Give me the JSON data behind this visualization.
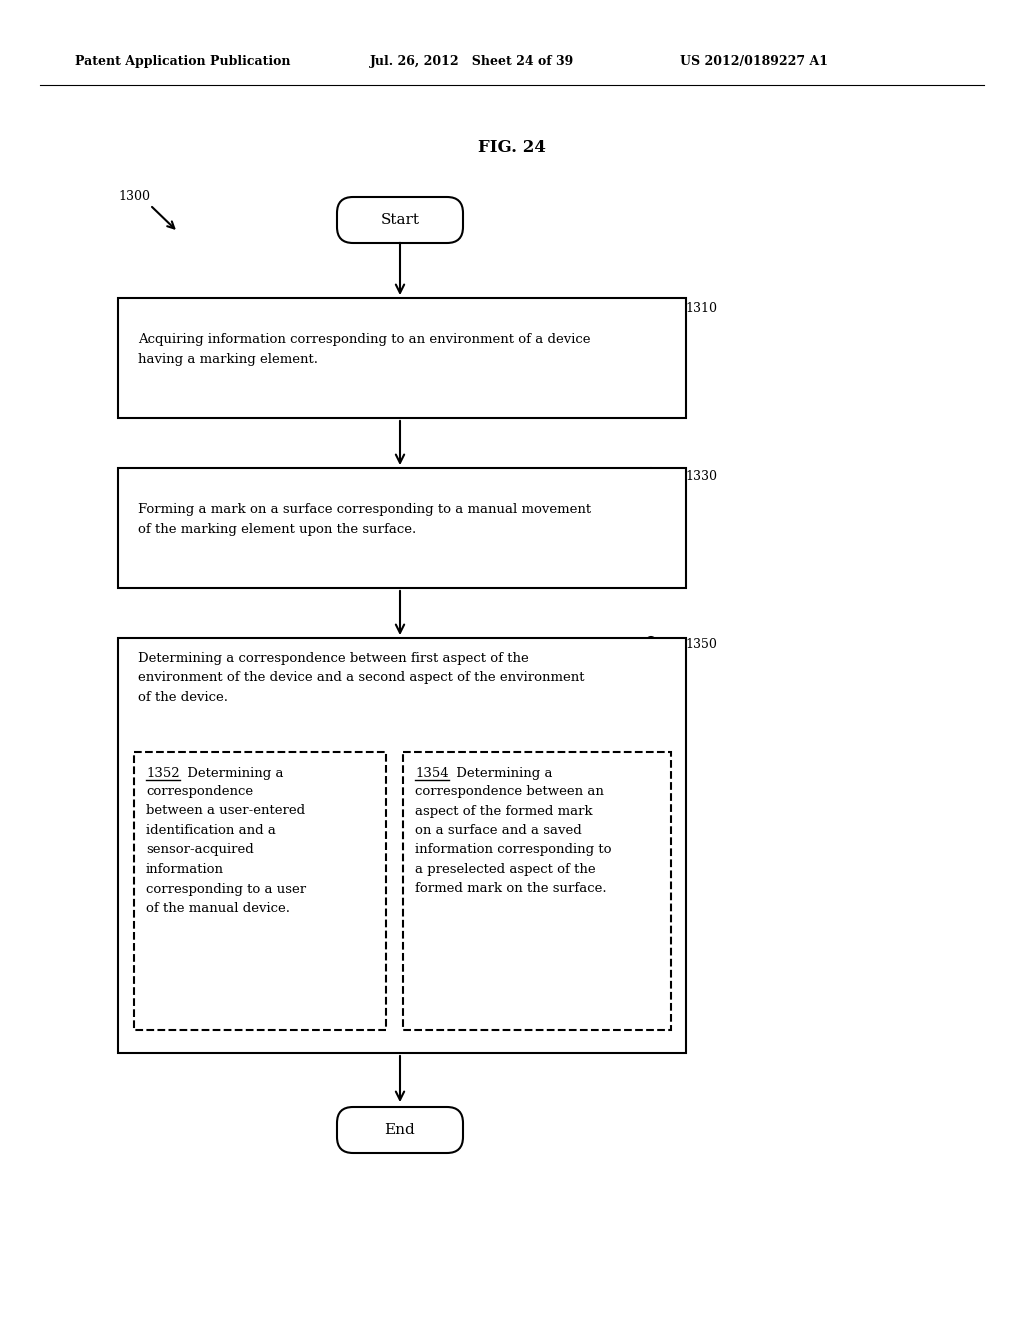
{
  "bg_color": "#ffffff",
  "header_left": "Patent Application Publication",
  "header_mid": "Jul. 26, 2012   Sheet 24 of 39",
  "header_right": "US 2012/0189227 A1",
  "fig_label": "FIG. 24",
  "start_label": "Start",
  "end_label": "End",
  "label_1300": "1300",
  "label_1310": "1310",
  "label_1330": "1330",
  "label_1350": "1350",
  "label_1352": "1352",
  "label_1354": "1354",
  "box1_text": "Acquiring information corresponding to an environment of a device\nhaving a marking element.",
  "box2_text": "Forming a mark on a surface corresponding to a manual movement\nof the marking element upon the surface.",
  "box3_text": "Determining a correspondence between first aspect of the\nenvironment of the device and a second aspect of the environment\nof the device.",
  "box3a_text": "correspondence\nbetween a user-entered\nidentification and a\nsensor-acquired\ninformation\ncorresponding to a user\nof the manual device.",
  "box3b_text": "correspondence between an\naspect of the formed mark\non a surface and a saved\ninformation corresponding to\na preselected aspect of the\nformed mark on the surface."
}
